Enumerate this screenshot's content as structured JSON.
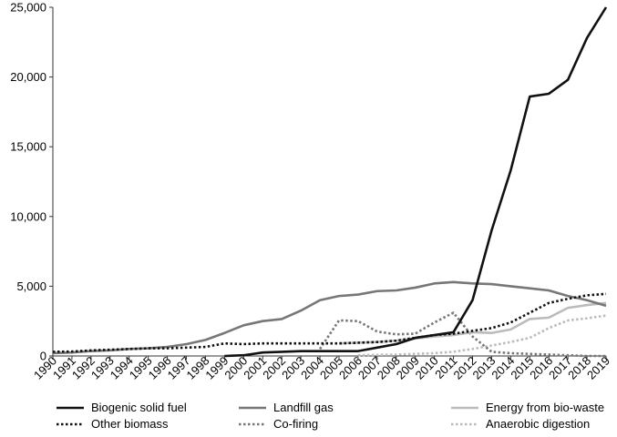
{
  "chart_data": {
    "type": "line",
    "title": "",
    "xlabel": "",
    "ylabel": "",
    "ylim": [
      0,
      25000
    ],
    "yticks": [
      0,
      5000,
      10000,
      15000,
      20000,
      25000
    ],
    "ytick_labels": [
      "0",
      "5,000",
      "10,000",
      "15,000",
      "20,000",
      "25,000"
    ],
    "grid": false,
    "legend_position": "bottom",
    "categories": [
      "1990",
      "1991",
      "1992",
      "1993",
      "1994",
      "1995",
      "1996",
      "1997",
      "1998",
      "1999",
      "2000",
      "2001",
      "2002",
      "2003",
      "2004",
      "2005",
      "2006",
      "2007",
      "2008",
      "2009",
      "2010",
      "2011",
      "2012",
      "2013",
      "2014",
      "2015",
      "2016",
      "2017",
      "2018",
      "2019"
    ],
    "series": [
      {
        "name": "Biogenic solid fuel",
        "color": "#111111",
        "dash": "solid",
        "values": [
          null,
          null,
          null,
          null,
          null,
          null,
          null,
          null,
          null,
          0,
          50,
          250,
          300,
          350,
          350,
          350,
          350,
          600,
          850,
          1300,
          1500,
          1700,
          4000,
          9000,
          13300,
          18600,
          18800,
          19800,
          22800,
          25000
        ]
      },
      {
        "name": "Landfill gas",
        "color": "#777777",
        "dash": "solid",
        "values": [
          200,
          250,
          350,
          400,
          500,
          550,
          650,
          850,
          1150,
          1650,
          2200,
          2500,
          2650,
          3250,
          4000,
          4300,
          4400,
          4650,
          4700,
          4900,
          5200,
          5300,
          5200,
          5150,
          5000,
          4850,
          4700,
          4300,
          4000,
          3600
        ]
      },
      {
        "name": "Energy from bio-waste",
        "color": "#bbbbbb",
        "dash": "solid",
        "values": [
          null,
          null,
          null,
          null,
          null,
          null,
          null,
          null,
          null,
          null,
          null,
          null,
          null,
          null,
          null,
          900,
          950,
          1000,
          1100,
          1250,
          1400,
          1500,
          1700,
          1650,
          1900,
          2650,
          2750,
          3450,
          3650,
          3800
        ]
      },
      {
        "name": "Other biomass",
        "color": "#111111",
        "dash": "dot",
        "values": [
          300,
          320,
          400,
          450,
          500,
          550,
          550,
          600,
          650,
          900,
          850,
          900,
          900,
          900,
          900,
          900,
          950,
          1000,
          1100,
          1300,
          1500,
          1600,
          1800,
          2000,
          2400,
          3100,
          3800,
          4100,
          4350,
          4450
        ]
      },
      {
        "name": "Co-firing",
        "color": "#777777",
        "dash": "dot",
        "values": [
          null,
          null,
          null,
          null,
          null,
          null,
          null,
          null,
          null,
          null,
          null,
          null,
          null,
          null,
          500,
          2550,
          2500,
          1750,
          1550,
          1600,
          2400,
          3100,
          1400,
          300,
          200,
          150,
          100,
          50,
          0,
          0
        ]
      },
      {
        "name": "Anaerobic digestion",
        "color": "#bbbbbb",
        "dash": "dot",
        "values": [
          null,
          null,
          null,
          null,
          null,
          null,
          null,
          null,
          null,
          null,
          null,
          null,
          null,
          null,
          null,
          null,
          50,
          80,
          100,
          150,
          200,
          300,
          500,
          750,
          1000,
          1300,
          2000,
          2550,
          2700,
          2900
        ]
      }
    ]
  }
}
